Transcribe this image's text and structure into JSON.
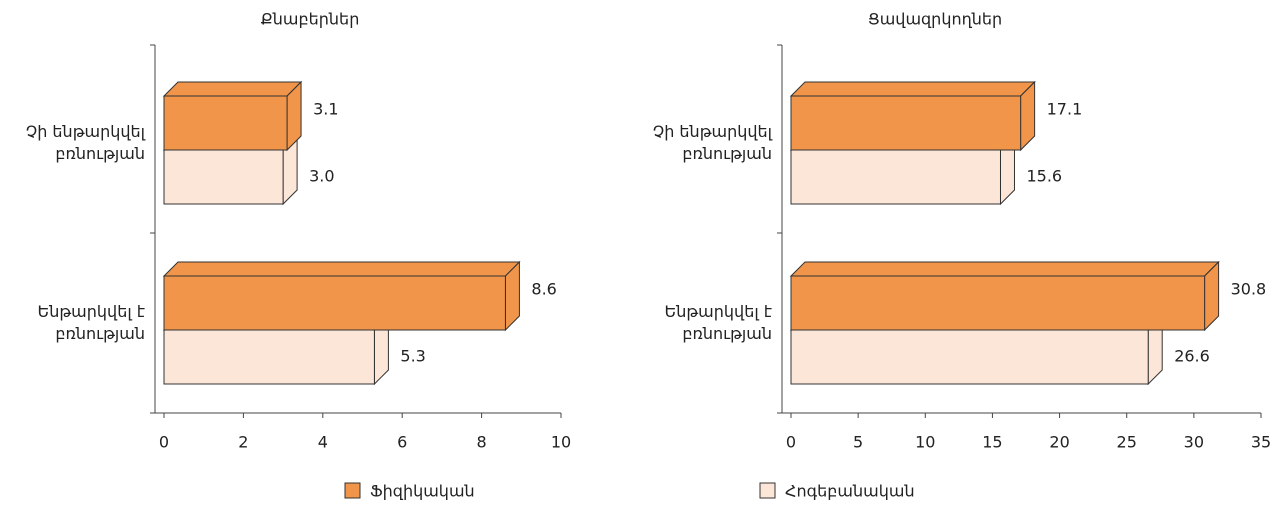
{
  "chart_data": [
    {
      "type": "bar3d",
      "title": "Քնաբերներ",
      "categories": [
        "Չի ենթարկվել բռնության",
        "Ենթարկվել է բռնության"
      ],
      "series": [
        {
          "color": "#f0954a",
          "values": [
            3.1,
            8.6
          ],
          "value_labels": [
            "3.1",
            "8.6"
          ]
        },
        {
          "color": "#fce6d8",
          "values": [
            3.0,
            5.3
          ],
          "value_labels": [
            "3.0",
            "5.3"
          ]
        }
      ],
      "xlim": [
        0,
        10
      ],
      "xticks": [
        0,
        2,
        4,
        6,
        8,
        10
      ]
    },
    {
      "type": "bar3d",
      "title": "Ցավազրկողներ",
      "categories": [
        "Չի ենթարկվել բռնության",
        "Ենթարկվել է բռնության"
      ],
      "series": [
        {
          "color": "#f0954a",
          "values": [
            17.1,
            30.8
          ],
          "value_labels": [
            "17.1",
            "30.8"
          ]
        },
        {
          "color": "#fce6d8",
          "values": [
            15.6,
            26.6
          ],
          "value_labels": [
            "15.6",
            "26.6"
          ]
        }
      ],
      "xlim": [
        0,
        35
      ],
      "xticks": [
        0,
        5,
        10,
        15,
        20,
        25,
        30,
        35
      ]
    }
  ],
  "legend": [
    {
      "name": "Ֆիզիկական",
      "color": "#f0954a"
    },
    {
      "name": "Հոգեբանական",
      "color": "#fce6d8"
    }
  ]
}
